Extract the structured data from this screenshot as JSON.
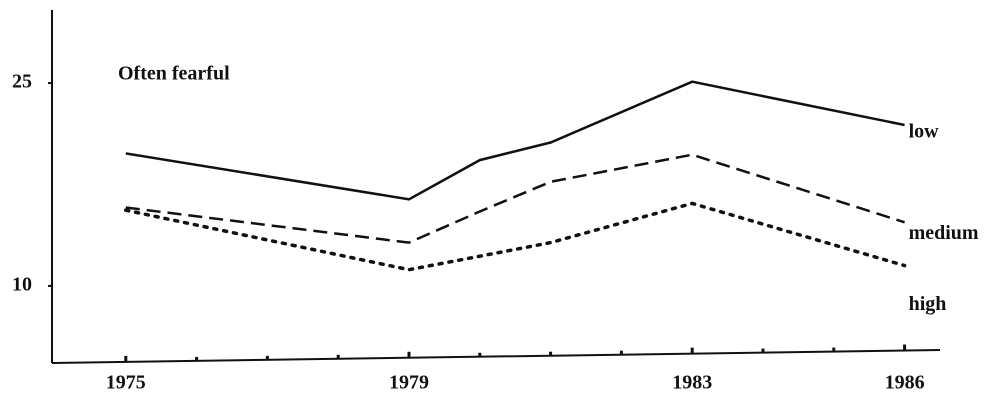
{
  "chart_data": {
    "type": "line",
    "title": "Often fearful",
    "x": [
      1975,
      1979,
      1980,
      1981,
      1983,
      1986
    ],
    "series": [
      {
        "name": "low",
        "color": "#111111",
        "dash": "solid",
        "values": [
          19.8,
          16.4,
          19.3,
          20.6,
          25.1,
          21.9
        ]
      },
      {
        "name": "medium",
        "color": "#111111",
        "dash": "dashed",
        "values": [
          15.8,
          13.2,
          15.5,
          17.7,
          19.7,
          14.7
        ]
      },
      {
        "name": "high",
        "color": "#111111",
        "dash": "dotted",
        "values": [
          15.6,
          11.2,
          12.2,
          13.2,
          16.1,
          11.5
        ]
      }
    ],
    "xlim": [
      1974,
      1986.5
    ],
    "xticks": [
      1975,
      1979,
      1983,
      1986
    ],
    "minor_xticks": [
      1976,
      1977,
      1978,
      1980,
      1981,
      1982,
      1984,
      1985
    ],
    "ylim": [
      4.3,
      30.4
    ],
    "yticks": [
      10,
      25
    ],
    "grid": false
  }
}
